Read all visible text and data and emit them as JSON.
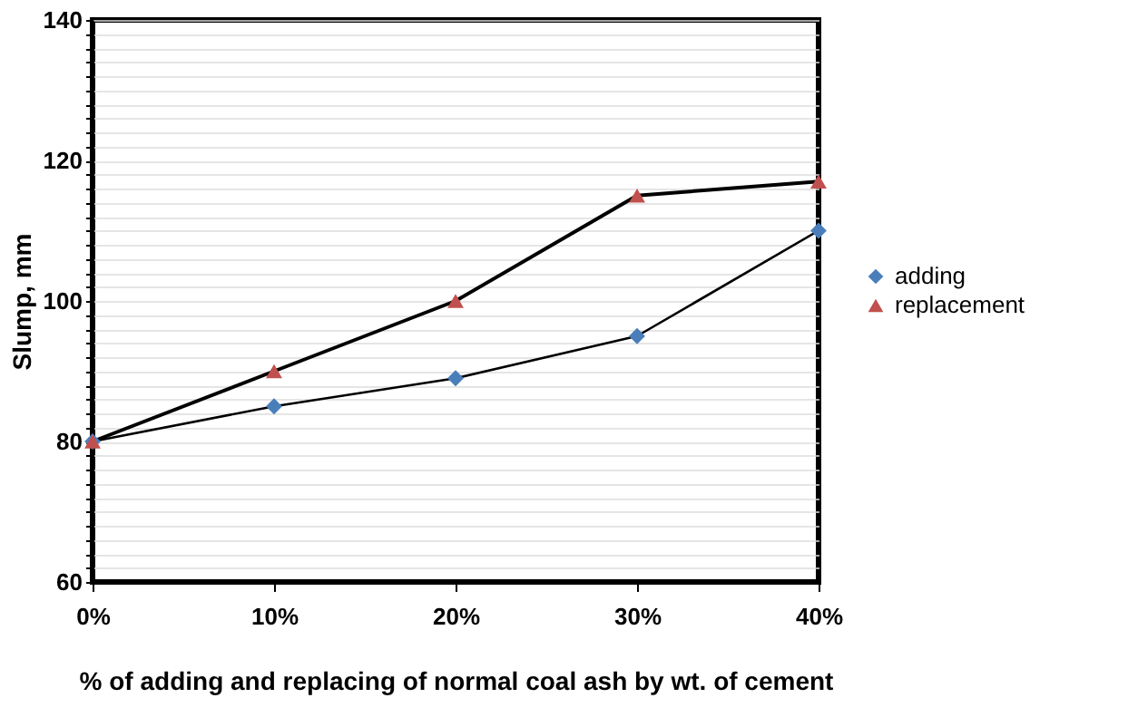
{
  "chart_data": {
    "type": "line",
    "xlabel": "% of adding and replacing of normal coal ash by wt. of cement",
    "ylabel": "Slump, mm",
    "categories": [
      "0%",
      "10%",
      "20%",
      "30%",
      "40%"
    ],
    "series": [
      {
        "name": "adding",
        "color": "#4a7ebb",
        "marker": "diamond",
        "values": [
          80,
          85,
          89,
          95,
          110
        ]
      },
      {
        "name": "replacement",
        "color": "#c0504d",
        "marker": "triangle",
        "values": [
          80,
          90,
          100,
          115,
          117
        ]
      }
    ],
    "ylim": [
      60,
      140
    ],
    "yticks": [
      60,
      {
        "value": 62,
        "label": null
      },
      {
        "value": 64,
        "label": null
      },
      {
        "value": 66,
        "label": null
      },
      {
        "value": 68,
        "label": null
      },
      {
        "value": 70,
        "label": null
      },
      {
        "value": 72,
        "label": null
      },
      {
        "value": 74,
        "label": null
      },
      {
        "value": 76,
        "label": null
      },
      {
        "value": 78,
        "label": null
      },
      80,
      {
        "value": 82,
        "label": null
      },
      {
        "value": 84,
        "label": null
      },
      {
        "value": 86,
        "label": null
      },
      {
        "value": 88,
        "label": null
      },
      {
        "value": 90,
        "label": null
      },
      {
        "value": 92,
        "label": null
      },
      {
        "value": 94,
        "label": null
      },
      {
        "value": 96,
        "label": null
      },
      {
        "value": 98,
        "label": null
      },
      100,
      {
        "value": 102,
        "label": null
      },
      {
        "value": 104,
        "label": null
      },
      {
        "value": 106,
        "label": null
      },
      {
        "value": 108,
        "label": null
      },
      {
        "value": 110,
        "label": null
      },
      {
        "value": 112,
        "label": null
      },
      {
        "value": 114,
        "label": null
      },
      {
        "value": 116,
        "label": null
      },
      {
        "value": 118,
        "label": null
      },
      120,
      {
        "value": 122,
        "label": null
      },
      {
        "value": 124,
        "label": null
      },
      {
        "value": 126,
        "label": null
      },
      {
        "value": 128,
        "label": null
      },
      {
        "value": 130,
        "label": null
      },
      {
        "value": 132,
        "label": null
      },
      {
        "value": 134,
        "label": null
      },
      {
        "value": 136,
        "label": null
      },
      {
        "value": 138,
        "label": null
      },
      140
    ],
    "grid": "y",
    "legend": "right",
    "line_style": "solid"
  }
}
